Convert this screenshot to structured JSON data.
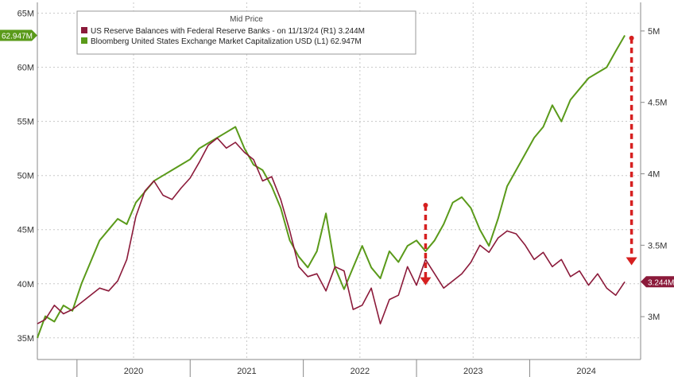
{
  "chart_data": {
    "type": "line",
    "legend": {
      "title": "Mid Price",
      "placement": "top-left",
      "entries": [
        {
          "text": "US Reserve Balances with Federal Reserve Banks -  on 11/13/24  (R1)  3.244M",
          "color": "#8b1a3a"
        },
        {
          "text": "Bloomberg United States Exchange Market Capitalization USD  (L1)      62.947M",
          "color": "#5a9a1a"
        }
      ]
    },
    "x_axis": {
      "range": [
        2019.65,
        2024.98
      ],
      "tick_labels": [
        "2020",
        "2021",
        "2022",
        "2023",
        "2024"
      ],
      "tick_values": [
        2020.0,
        2021.0,
        2022.0,
        2023.0,
        2024.0
      ]
    },
    "y_left": {
      "range": [
        33,
        66
      ],
      "ticks": [
        35,
        40,
        45,
        50,
        55,
        60,
        65
      ],
      "tick_labels": [
        "35M",
        "40M",
        "45M",
        "50M",
        "55M",
        "60M",
        "65M"
      ]
    },
    "y_right": {
      "range": [
        2.7,
        5.2
      ],
      "ticks": [
        3.0,
        3.5,
        4.0,
        4.5,
        5.0
      ],
      "tick_labels": [
        "3M",
        "3.5M",
        "4M",
        "4.5M",
        "5M"
      ]
    },
    "grid": true,
    "badges": {
      "left": {
        "text": "62.947M",
        "value": 62.947,
        "color": "#5a9a1a"
      },
      "right": {
        "text": "3.244M",
        "value": 3.244,
        "color": "#8b1a3a"
      }
    },
    "series": [
      {
        "name": "Bloomberg United States Exchange Market Capitalization USD",
        "axis": "left",
        "color": "#5a9a1a",
        "x": [
          2019.65,
          2019.72,
          2019.8,
          2019.88,
          2019.96,
          2020.04,
          2020.12,
          2020.2,
          2020.28,
          2020.36,
          2020.44,
          2020.52,
          2020.6,
          2020.68,
          2020.76,
          2020.84,
          2020.92,
          2021.0,
          2021.08,
          2021.16,
          2021.24,
          2021.32,
          2021.4,
          2021.48,
          2021.56,
          2021.64,
          2021.72,
          2021.8,
          2021.88,
          2021.96,
          2022.04,
          2022.12,
          2022.2,
          2022.28,
          2022.36,
          2022.44,
          2022.52,
          2022.6,
          2022.68,
          2022.76,
          2022.84,
          2022.92,
          2023.0,
          2023.08,
          2023.16,
          2023.24,
          2023.32,
          2023.4,
          2023.48,
          2023.56,
          2023.64,
          2023.72,
          2023.8,
          2023.88,
          2023.96,
          2024.04,
          2024.12,
          2024.2,
          2024.28,
          2024.36,
          2024.44,
          2024.52,
          2024.6,
          2024.68,
          2024.76,
          2024.84
        ],
        "values": [
          35.0,
          37.0,
          36.5,
          38.0,
          37.5,
          40.0,
          42.0,
          44.0,
          45.0,
          46.0,
          45.5,
          47.5,
          48.5,
          49.5,
          50.0,
          50.5,
          51.0,
          51.5,
          52.5,
          53.0,
          53.5,
          54.0,
          54.5,
          52.5,
          51.0,
          50.5,
          49.0,
          47.0,
          44.0,
          42.5,
          41.5,
          43.0,
          46.5,
          41.5,
          39.5,
          41.5,
          43.5,
          41.5,
          40.5,
          43.0,
          42.0,
          43.5,
          44.0,
          43.0,
          44.0,
          45.5,
          47.5,
          48.0,
          47.0,
          45.0,
          43.5,
          46.0,
          49.0,
          50.5,
          52.0,
          53.5,
          54.5,
          56.5,
          55.0,
          57.0,
          58.0,
          59.0,
          59.5,
          60.0,
          61.5,
          62.947
        ]
      },
      {
        "name": "US Reserve Balances with Federal Reserve Banks",
        "axis": "right",
        "color": "#8b1a3a",
        "x": [
          2019.65,
          2019.72,
          2019.8,
          2019.88,
          2019.96,
          2020.04,
          2020.12,
          2020.2,
          2020.28,
          2020.36,
          2020.44,
          2020.52,
          2020.6,
          2020.68,
          2020.76,
          2020.84,
          2020.92,
          2021.0,
          2021.08,
          2021.16,
          2021.24,
          2021.32,
          2021.4,
          2021.48,
          2021.56,
          2021.64,
          2021.72,
          2021.8,
          2021.88,
          2021.96,
          2022.04,
          2022.12,
          2022.2,
          2022.28,
          2022.36,
          2022.44,
          2022.52,
          2022.6,
          2022.68,
          2022.76,
          2022.84,
          2022.92,
          2023.0,
          2023.08,
          2023.16,
          2023.24,
          2023.32,
          2023.4,
          2023.48,
          2023.56,
          2023.64,
          2023.72,
          2023.8,
          2023.88,
          2023.96,
          2024.04,
          2024.12,
          2024.2,
          2024.28,
          2024.36,
          2024.44,
          2024.52,
          2024.6,
          2024.68,
          2024.76,
          2024.84
        ],
        "values": [
          2.95,
          2.98,
          3.08,
          3.02,
          3.05,
          3.1,
          3.15,
          3.2,
          3.18,
          3.25,
          3.4,
          3.7,
          3.88,
          3.95,
          3.85,
          3.82,
          3.9,
          3.97,
          4.08,
          4.2,
          4.25,
          4.18,
          4.22,
          4.15,
          4.1,
          3.95,
          3.98,
          3.82,
          3.6,
          3.35,
          3.28,
          3.3,
          3.18,
          3.35,
          3.32,
          3.05,
          3.08,
          3.2,
          2.95,
          3.12,
          3.15,
          3.35,
          3.22,
          3.4,
          3.3,
          3.2,
          3.25,
          3.3,
          3.38,
          3.5,
          3.45,
          3.55,
          3.6,
          3.58,
          3.5,
          3.4,
          3.45,
          3.35,
          3.4,
          3.28,
          3.32,
          3.22,
          3.3,
          3.2,
          3.15,
          3.244
        ]
      }
    ],
    "annotations": [
      {
        "type": "dashed-arrow",
        "direction": "down",
        "x": 2023.08,
        "y_from": 3.78,
        "y_to": 3.22,
        "axis": "right",
        "color": "#d62020"
      },
      {
        "type": "dashed-arrow",
        "direction": "down",
        "x": 2024.9,
        "y_from": 4.95,
        "y_to": 3.36,
        "axis": "right",
        "color": "#d62020"
      }
    ]
  }
}
